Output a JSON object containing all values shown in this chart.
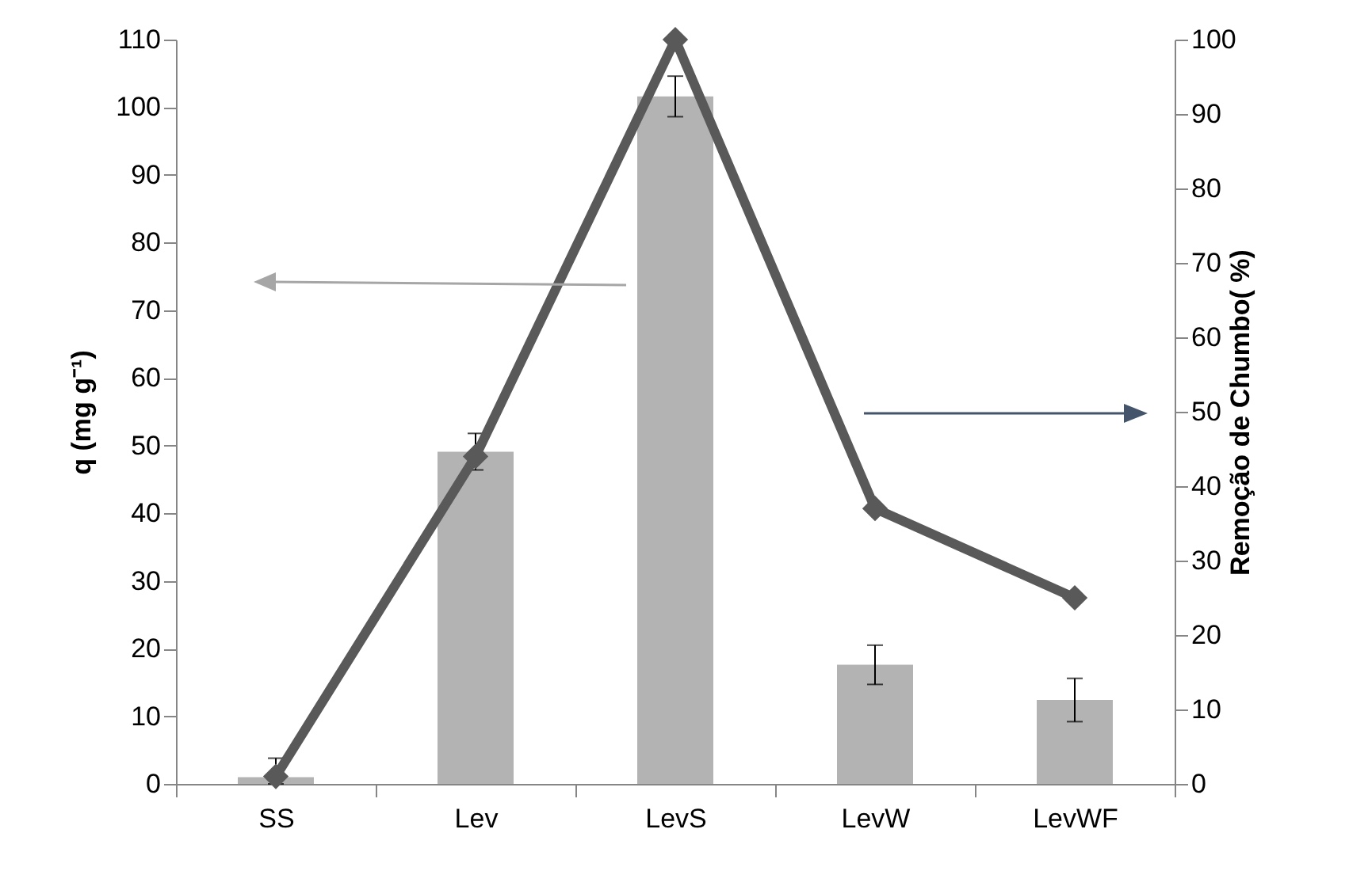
{
  "chart_data": {
    "type": "bar",
    "categories": [
      "SS",
      "Lev",
      "LevS",
      "LevW",
      "LevWF"
    ],
    "ylabel": "q (mg g⁻¹)",
    "y2label": "Remoção de Chumbo( %)",
    "ylim": [
      0,
      110
    ],
    "yticks": [
      0,
      10,
      20,
      30,
      40,
      50,
      60,
      70,
      80,
      90,
      100,
      110
    ],
    "y2lim": [
      0,
      100
    ],
    "y2ticks": [
      0,
      10,
      20,
      30,
      40,
      50,
      60,
      70,
      80,
      90,
      100
    ],
    "grid": false,
    "marker": "diamond",
    "series": [
      {
        "color": "#b3b3b3",
        "values": [
          1,
          49.1,
          101.6,
          17.6,
          12.4
        ],
        "errors": [
          [
            0,
            3.8
          ],
          2.7,
          3,
          2.9,
          3.2
        ]
      },
      {
        "type": "line",
        "axis": "y2",
        "color": "#595959",
        "values": [
          1,
          44,
          100,
          37,
          25
        ]
      }
    ]
  }
}
